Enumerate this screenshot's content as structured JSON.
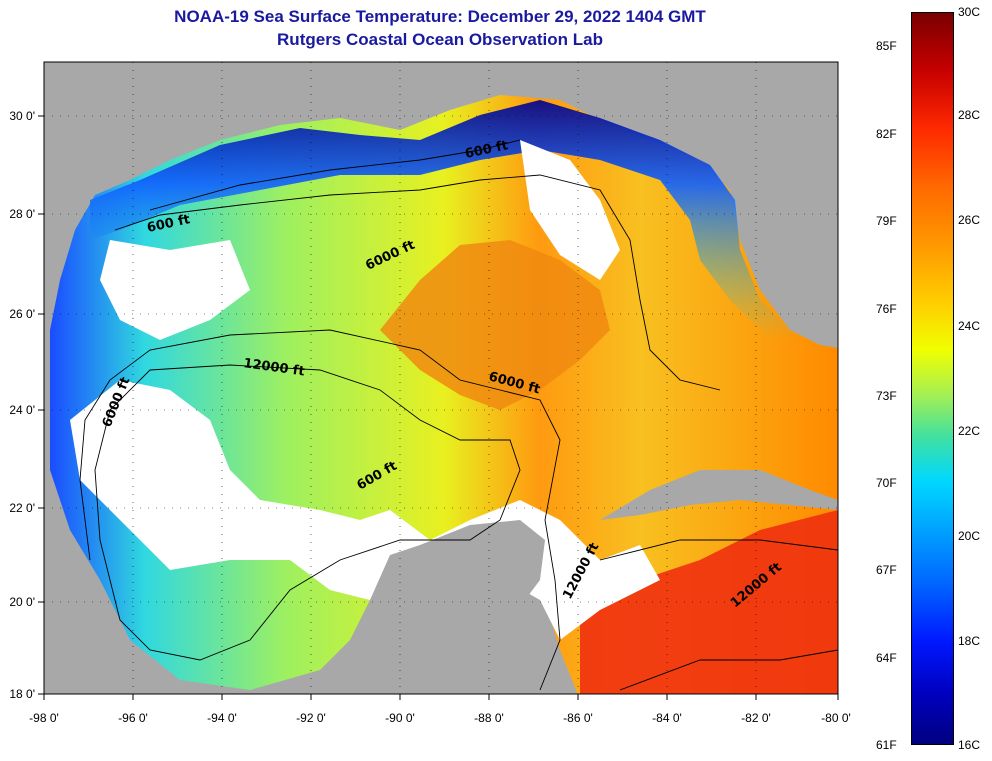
{
  "title": {
    "line1": "NOAA-19 Sea Surface Temperature:  December 29, 2022 1404 GMT",
    "line2": "Rutgers Coastal Ocean Observation Lab"
  },
  "map": {
    "lon_ticks": [
      "-98 0'",
      "-96 0'",
      "-94 0'",
      "-92 0'",
      "-90 0'",
      "-88 0'",
      "-86 0'",
      "-84 0'",
      "-82 0'",
      "-80 0'"
    ],
    "lat_ticks": [
      "30 0'",
      "28 0'",
      "26 0'",
      "24 0'",
      "22 0'",
      "20 0'",
      "18 0'"
    ],
    "lon_range": [
      -98,
      -80
    ],
    "lat_range": [
      18,
      31
    ],
    "contour_labels": [
      "600 ft",
      "6000 ft",
      "600 ft",
      "12000 ft",
      "6000 ft",
      "6000 ft",
      "600 ft",
      "12000 ft",
      "12000 ft"
    ]
  },
  "colorbar": {
    "fahrenheit": [
      "85F",
      "82F",
      "79F",
      "76F",
      "73F",
      "70F",
      "67F",
      "64F",
      "61F"
    ],
    "celsius": [
      "30C",
      "28C",
      "26C",
      "24C",
      "22C",
      "20C",
      "18C",
      "16C"
    ],
    "colors": {
      "high": "#7a0000",
      "mid": "#f0ff00",
      "low": "#000080"
    }
  }
}
